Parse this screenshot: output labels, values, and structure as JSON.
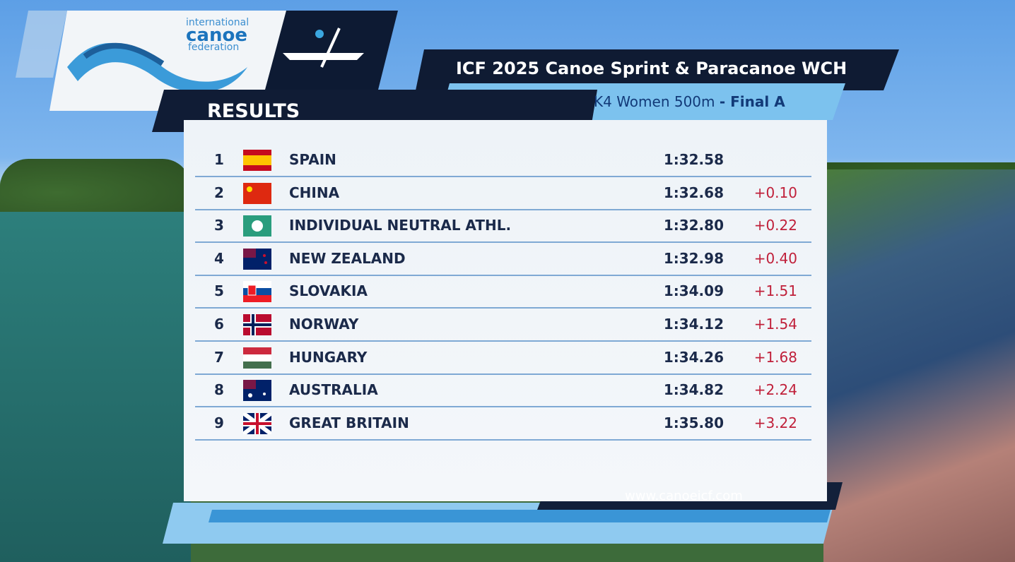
{
  "header": {
    "logo": {
      "line1": "international",
      "line2": "canoe",
      "line3": "federation"
    },
    "event": "ICF 2025 Canoe Sprint & Paracanoe WCH",
    "section": "RESULTS",
    "race": "K4 Women 500m",
    "phase": "- Final A"
  },
  "table": {
    "rows": [
      {
        "rank": 1,
        "country": "SPAIN",
        "time": "1:32.58"
      },
      {
        "rank": 2,
        "country": "CHINA",
        "time": "1:32.68",
        "behind": "+0.10"
      },
      {
        "rank": 3,
        "country": "INDIVIDUAL NEUTRAL ATHL.",
        "time": "1:32.80",
        "behind": "+0.22"
      },
      {
        "rank": 4,
        "country": "NEW ZEALAND",
        "time": "1:32.98",
        "behind": "+0.40"
      },
      {
        "rank": 5,
        "country": "SLOVAKIA",
        "time": "1:34.09",
        "behind": "+1.51"
      },
      {
        "rank": 6,
        "country": "NORWAY",
        "time": "1:34.12",
        "behind": "+1.54"
      },
      {
        "rank": 7,
        "country": "HUNGARY",
        "time": "1:34.26",
        "behind": "+1.68"
      },
      {
        "rank": 8,
        "country": "AUSTRALIA",
        "time": "1:34.82",
        "behind": "+2.24"
      },
      {
        "rank": 9,
        "country": "GREAT BRITAIN",
        "time": "1:35.80",
        "behind": "+3.22"
      }
    ]
  },
  "footer": {
    "url": "www.canoeicf.com"
  }
}
